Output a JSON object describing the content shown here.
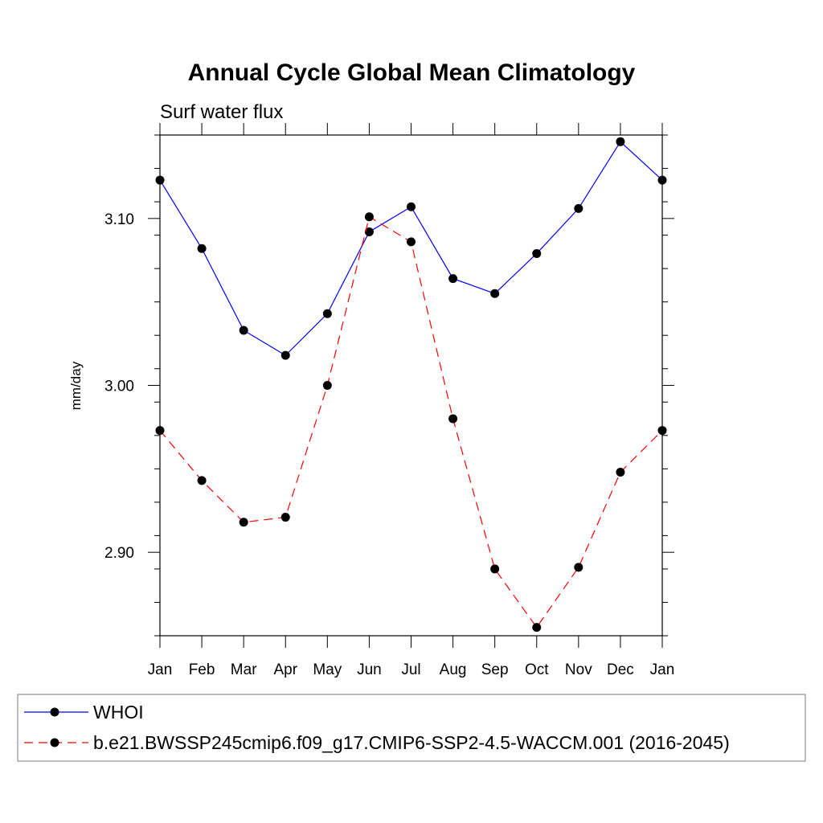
{
  "chart_data": {
    "type": "line",
    "title": "Annual Cycle Global Mean Climatology",
    "subtitle": "Surf water flux",
    "xlabel": "",
    "ylabel": "mm/day",
    "categories": [
      "Jan",
      "Feb",
      "Mar",
      "Apr",
      "May",
      "Jun",
      "Jul",
      "Aug",
      "Sep",
      "Oct",
      "Nov",
      "Dec",
      "Jan"
    ],
    "ylim": [
      2.85,
      3.15
    ],
    "yticks": [
      2.9,
      3.0,
      3.1
    ],
    "ytick_labels": [
      "2.90",
      "3.00",
      "3.10"
    ],
    "grid": false,
    "legend_position": "bottom",
    "series": [
      {
        "name": "WHOI",
        "color": "#0000ff",
        "dash": "solid",
        "values": [
          3.123,
          3.082,
          3.033,
          3.018,
          3.043,
          3.092,
          3.107,
          3.064,
          3.055,
          3.079,
          3.106,
          3.146,
          3.123
        ]
      },
      {
        "name": "b.e21.BWSSP245cmip6.f09_g17.CMIP6-SSP2-4.5-WACCM.001 (2016-2045)",
        "color": "#ff0000",
        "dash": "dashed",
        "values": [
          2.973,
          2.943,
          2.918,
          2.921,
          3.0,
          3.101,
          3.086,
          2.98,
          2.89,
          2.855,
          2.891,
          2.948,
          2.973
        ]
      }
    ]
  }
}
